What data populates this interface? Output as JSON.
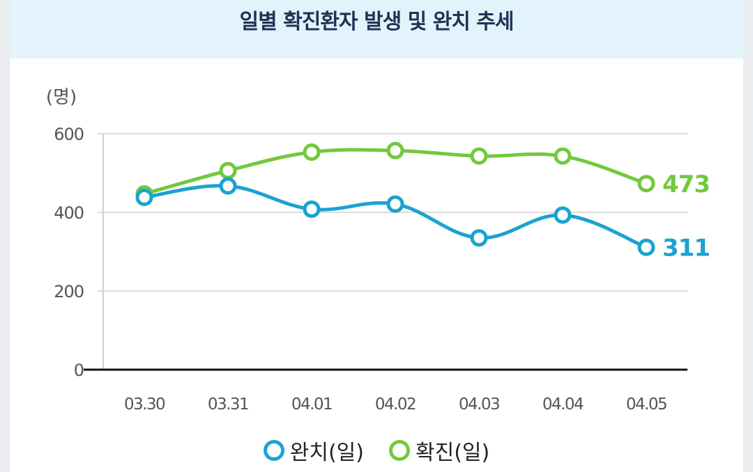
{
  "title": "일별 확진환자 발생 및 완치 추세",
  "chart_data": {
    "type": "line",
    "unit_label": "(명)",
    "categories": [
      "03.30",
      "03.31",
      "04.01",
      "04.02",
      "04.03",
      "04.04",
      "04.05"
    ],
    "ylim": [
      0,
      600
    ],
    "yticks": [
      0,
      200,
      400,
      600
    ],
    "grid": true,
    "legend_position": "bottom",
    "series": [
      {
        "name": "완치(일)",
        "color": "#19a3d1",
        "values": [
          438,
          467,
          408,
          421,
          335,
          393,
          311
        ],
        "end_label": "311"
      },
      {
        "name": "확진(일)",
        "color": "#72c93c",
        "values": [
          447,
          506,
          553,
          557,
          543,
          543,
          473
        ],
        "end_label": "473"
      }
    ]
  }
}
